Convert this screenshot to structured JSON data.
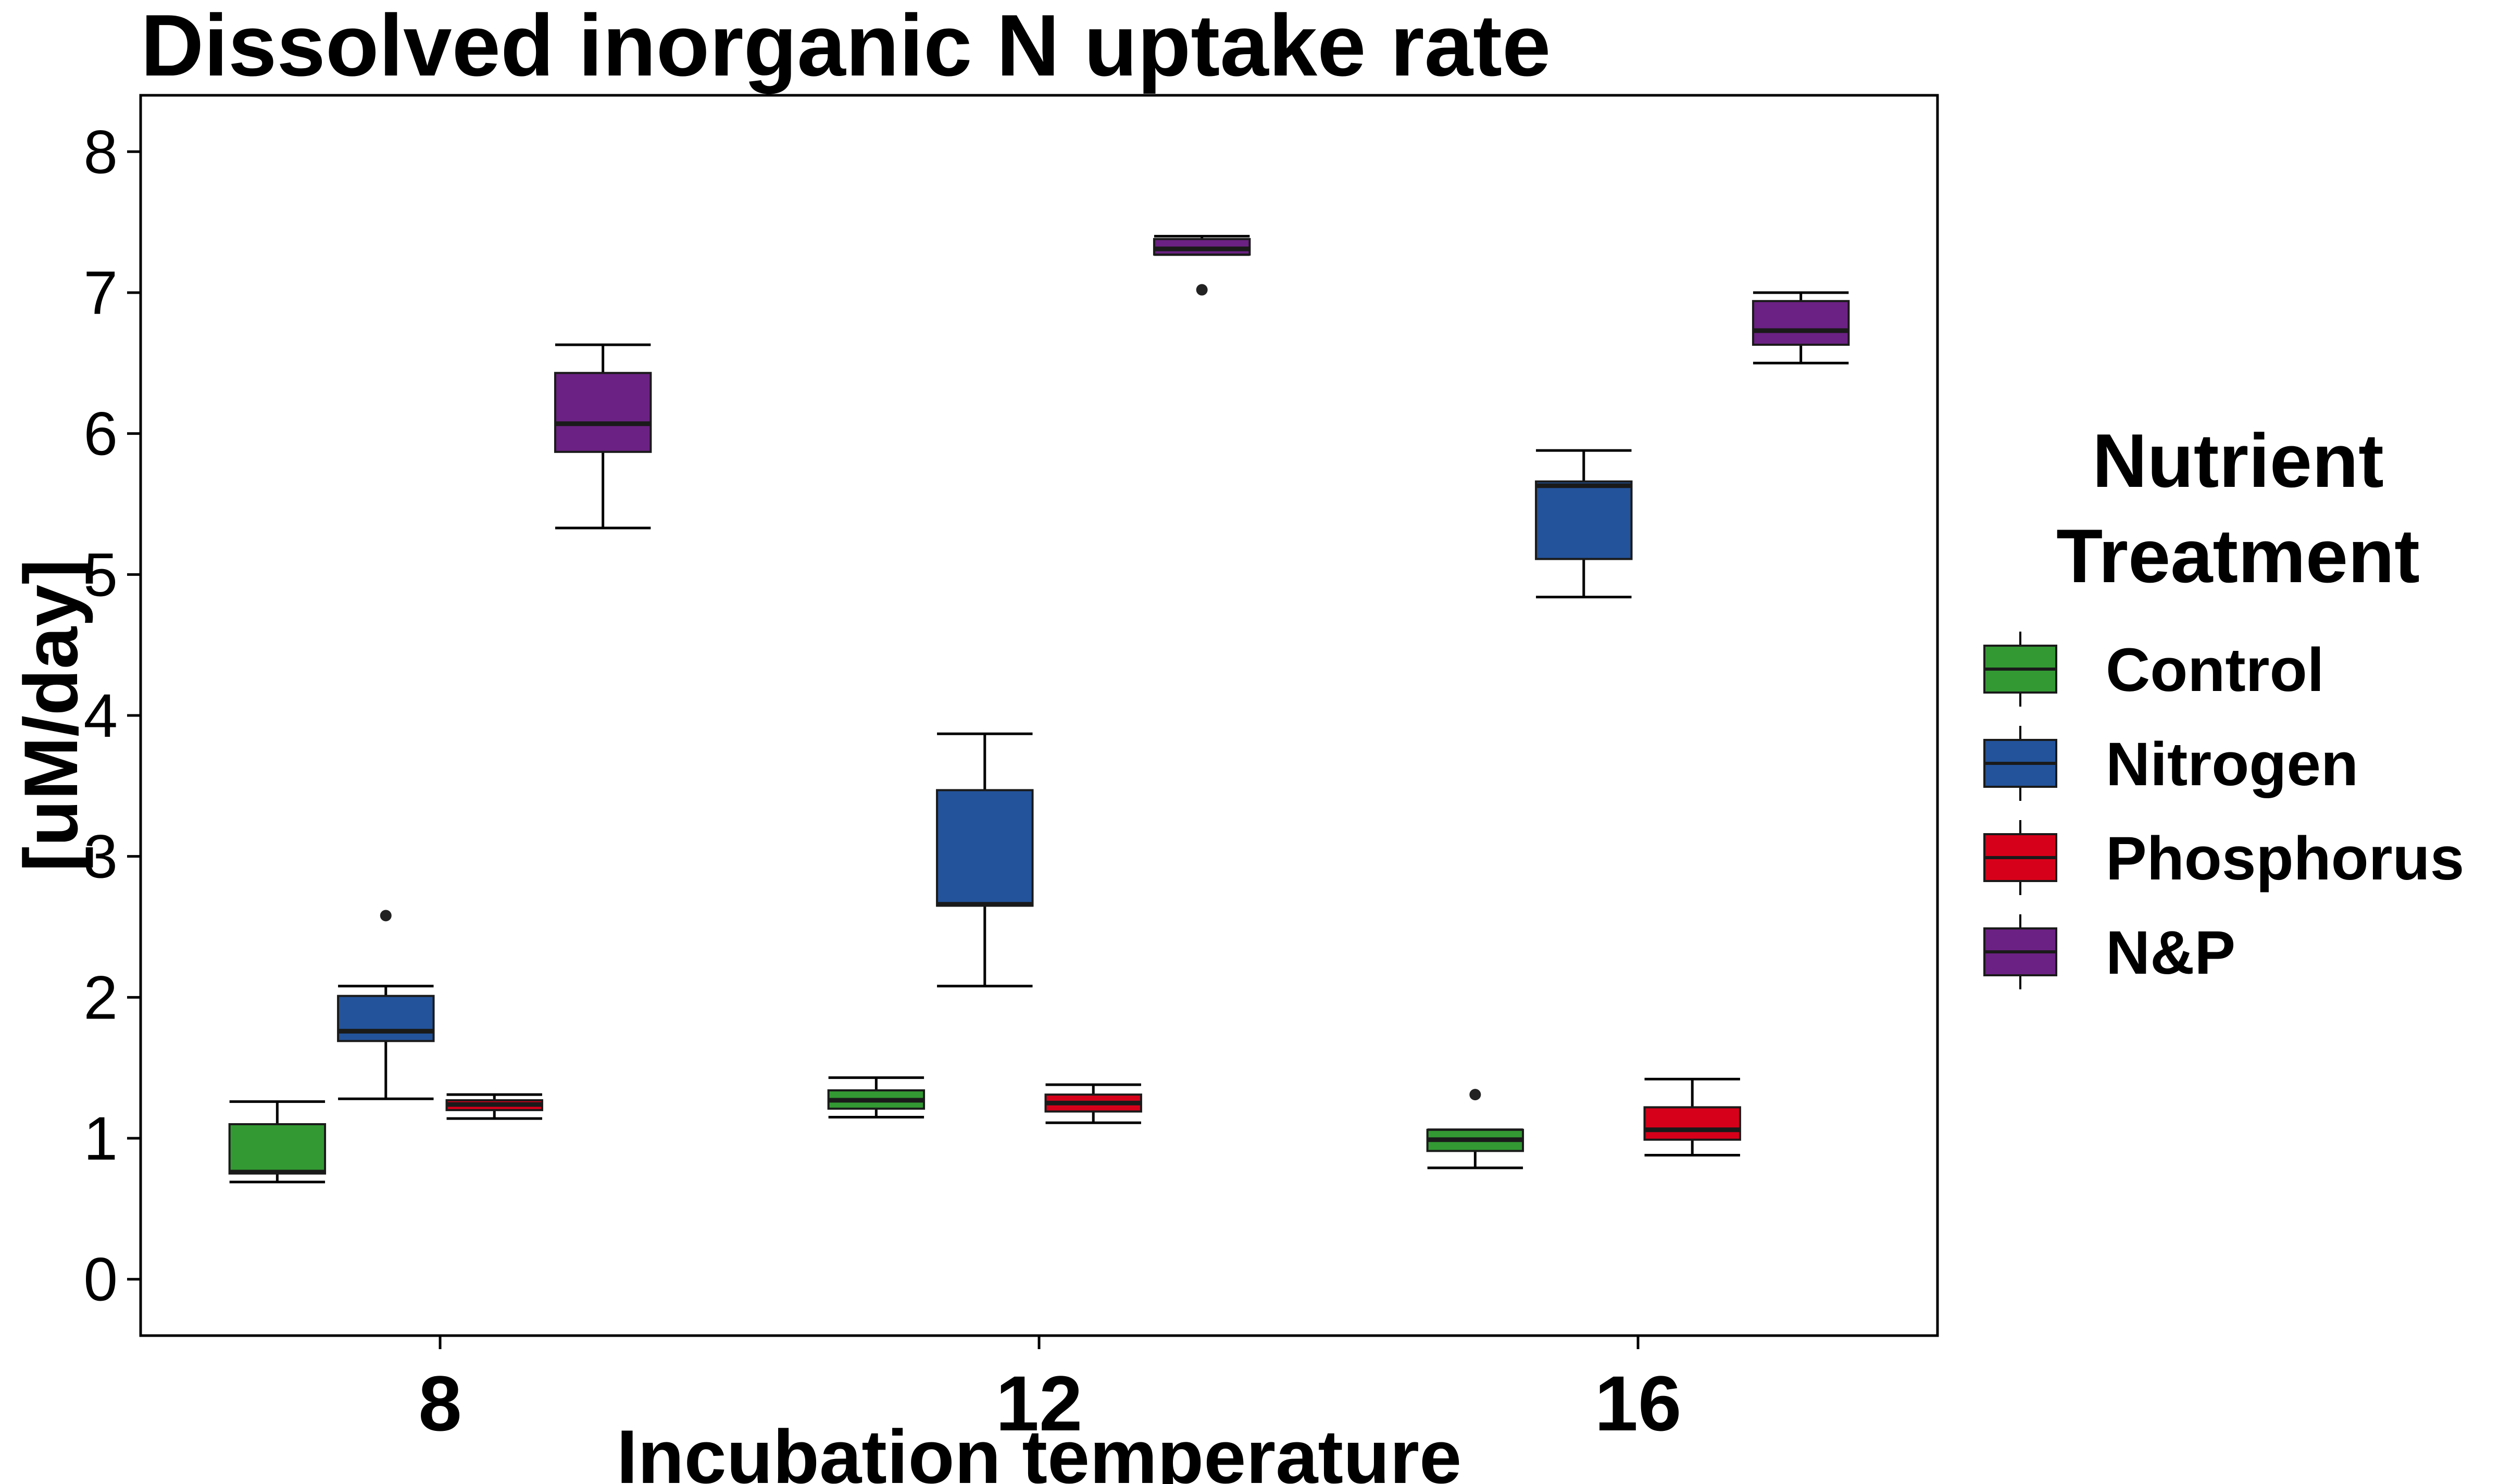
{
  "chart_data": {
    "type": "boxplot",
    "title": "Dissolved inorganic N uptake rate",
    "xlabel": "Incubation temperature",
    "ylabel": "[uM/day]",
    "categories": [
      "8",
      "12",
      "16"
    ],
    "ylim": [
      -0.4,
      8.4
    ],
    "yticks": [
      0,
      1,
      2,
      3,
      4,
      5,
      6,
      7,
      8
    ],
    "grid": false,
    "legend": {
      "title_lines": [
        "Nutrient",
        "Treatment"
      ],
      "placement": "right"
    },
    "series": [
      {
        "name": "Control",
        "color": "#339933",
        "boxes": [
          {
            "category": "8",
            "whisker_low": 0.69,
            "q1": 0.75,
            "median": 0.76,
            "q3": 1.1,
            "whisker_high": 1.26,
            "outliers": []
          },
          {
            "category": "12",
            "whisker_low": 1.15,
            "q1": 1.21,
            "median": 1.27,
            "q3": 1.34,
            "whisker_high": 1.43,
            "outliers": []
          },
          {
            "category": "16",
            "whisker_low": 0.79,
            "q1": 0.91,
            "median": 0.99,
            "q3": 1.06,
            "whisker_high": 1.06,
            "outliers": [
              1.31
            ]
          }
        ]
      },
      {
        "name": "Nitrogen",
        "color": "#23539b",
        "boxes": [
          {
            "category": "8",
            "whisker_low": 1.28,
            "q1": 1.69,
            "median": 1.76,
            "q3": 2.01,
            "whisker_high": 2.08,
            "outliers": [
              2.58
            ]
          },
          {
            "category": "12",
            "whisker_low": 2.08,
            "q1": 2.65,
            "median": 2.66,
            "q3": 3.47,
            "whisker_high": 3.87,
            "outliers": []
          },
          {
            "category": "16",
            "whisker_low": 4.84,
            "q1": 5.11,
            "median": 5.63,
            "q3": 5.66,
            "whisker_high": 5.88,
            "outliers": []
          }
        ]
      },
      {
        "name": "Phosphorus",
        "color": "#d7001a",
        "boxes": [
          {
            "category": "8",
            "whisker_low": 1.14,
            "q1": 1.2,
            "median": 1.24,
            "q3": 1.27,
            "whisker_high": 1.31,
            "outliers": []
          },
          {
            "category": "12",
            "whisker_low": 1.11,
            "q1": 1.19,
            "median": 1.25,
            "q3": 1.31,
            "whisker_high": 1.38,
            "outliers": []
          },
          {
            "category": "16",
            "whisker_low": 0.88,
            "q1": 0.99,
            "median": 1.06,
            "q3": 1.22,
            "whisker_high": 1.42,
            "outliers": []
          }
        ]
      },
      {
        "name": "N&P",
        "color": "#6b2183",
        "boxes": [
          {
            "category": "8",
            "whisker_low": 5.33,
            "q1": 5.87,
            "median": 6.07,
            "q3": 6.43,
            "whisker_high": 6.63,
            "outliers": []
          },
          {
            "category": "12",
            "whisker_low": 7.27,
            "q1": 7.27,
            "median": 7.31,
            "q3": 7.38,
            "whisker_high": 7.4,
            "outliers": [
              7.02
            ]
          },
          {
            "category": "16",
            "whisker_low": 6.5,
            "q1": 6.63,
            "median": 6.73,
            "q3": 6.94,
            "whisker_high": 7.0,
            "outliers": []
          }
        ]
      }
    ]
  }
}
